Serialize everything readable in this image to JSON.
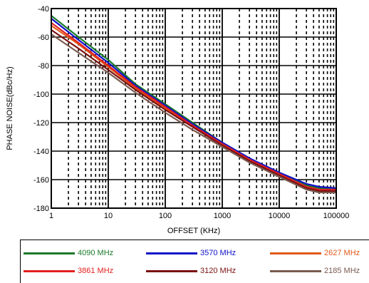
{
  "chart_data": {
    "type": "line",
    "title": "",
    "xlabel": "OFFSET (KHz)",
    "ylabel": "PHASE NOISE(dBc/Hz)",
    "xscale": "log",
    "xlim": [
      1,
      100000
    ],
    "ylim": [
      -180,
      -40
    ],
    "x_ticks": [
      1,
      10,
      100,
      1000,
      10000,
      100000
    ],
    "x_tick_labels": [
      "1",
      "10",
      "100",
      "1000",
      "10000",
      "100000"
    ],
    "y_ticks": [
      -40,
      -60,
      -80,
      -100,
      -120,
      -140,
      -160,
      -180
    ],
    "y_tick_labels": [
      "-40",
      "-60",
      "-80",
      "-100",
      "-120",
      "-140",
      "-160",
      "-180"
    ],
    "grid": "dashed, log minor verticals",
    "legend_position": "bottom",
    "x": [
      1,
      3,
      10,
      30,
      100,
      300,
      1000,
      3000,
      10000,
      30000,
      50000,
      100000
    ],
    "series": [
      {
        "name": "4090 MHz",
        "color": "#1a7a2a",
        "values": [
          -45,
          -60,
          -76,
          -93,
          -107,
          -120,
          -134,
          -145,
          -156,
          -164,
          -166,
          -166
        ]
      },
      {
        "name": "3570 MHz",
        "color": "#1010c8",
        "values": [
          -47,
          -62,
          -78,
          -94,
          -108,
          -121,
          -134,
          -145,
          -155,
          -163,
          -165,
          -166
        ]
      },
      {
        "name": "2627 MHz",
        "color": "#e05a1a",
        "values": [
          -52,
          -65,
          -81,
          -96,
          -110,
          -122,
          -135,
          -146,
          -156,
          -165,
          -168,
          -169
        ]
      },
      {
        "name": "3861 MHz",
        "color": "#e02020",
        "values": [
          -50,
          -64,
          -80,
          -95,
          -109,
          -122,
          -135,
          -146,
          -156,
          -165,
          -167,
          -167
        ]
      },
      {
        "name": "3120 MHz",
        "color": "#7a1010",
        "values": [
          -55,
          -68,
          -83,
          -97,
          -111,
          -123,
          -136,
          -147,
          -157,
          -166,
          -168,
          -168
        ]
      },
      {
        "name": "2185 MHz",
        "color": "#7a5a50",
        "values": [
          -58,
          -71,
          -85,
          -99,
          -113,
          -125,
          -137,
          -148,
          -158,
          -167,
          -169,
          -169
        ]
      }
    ]
  }
}
